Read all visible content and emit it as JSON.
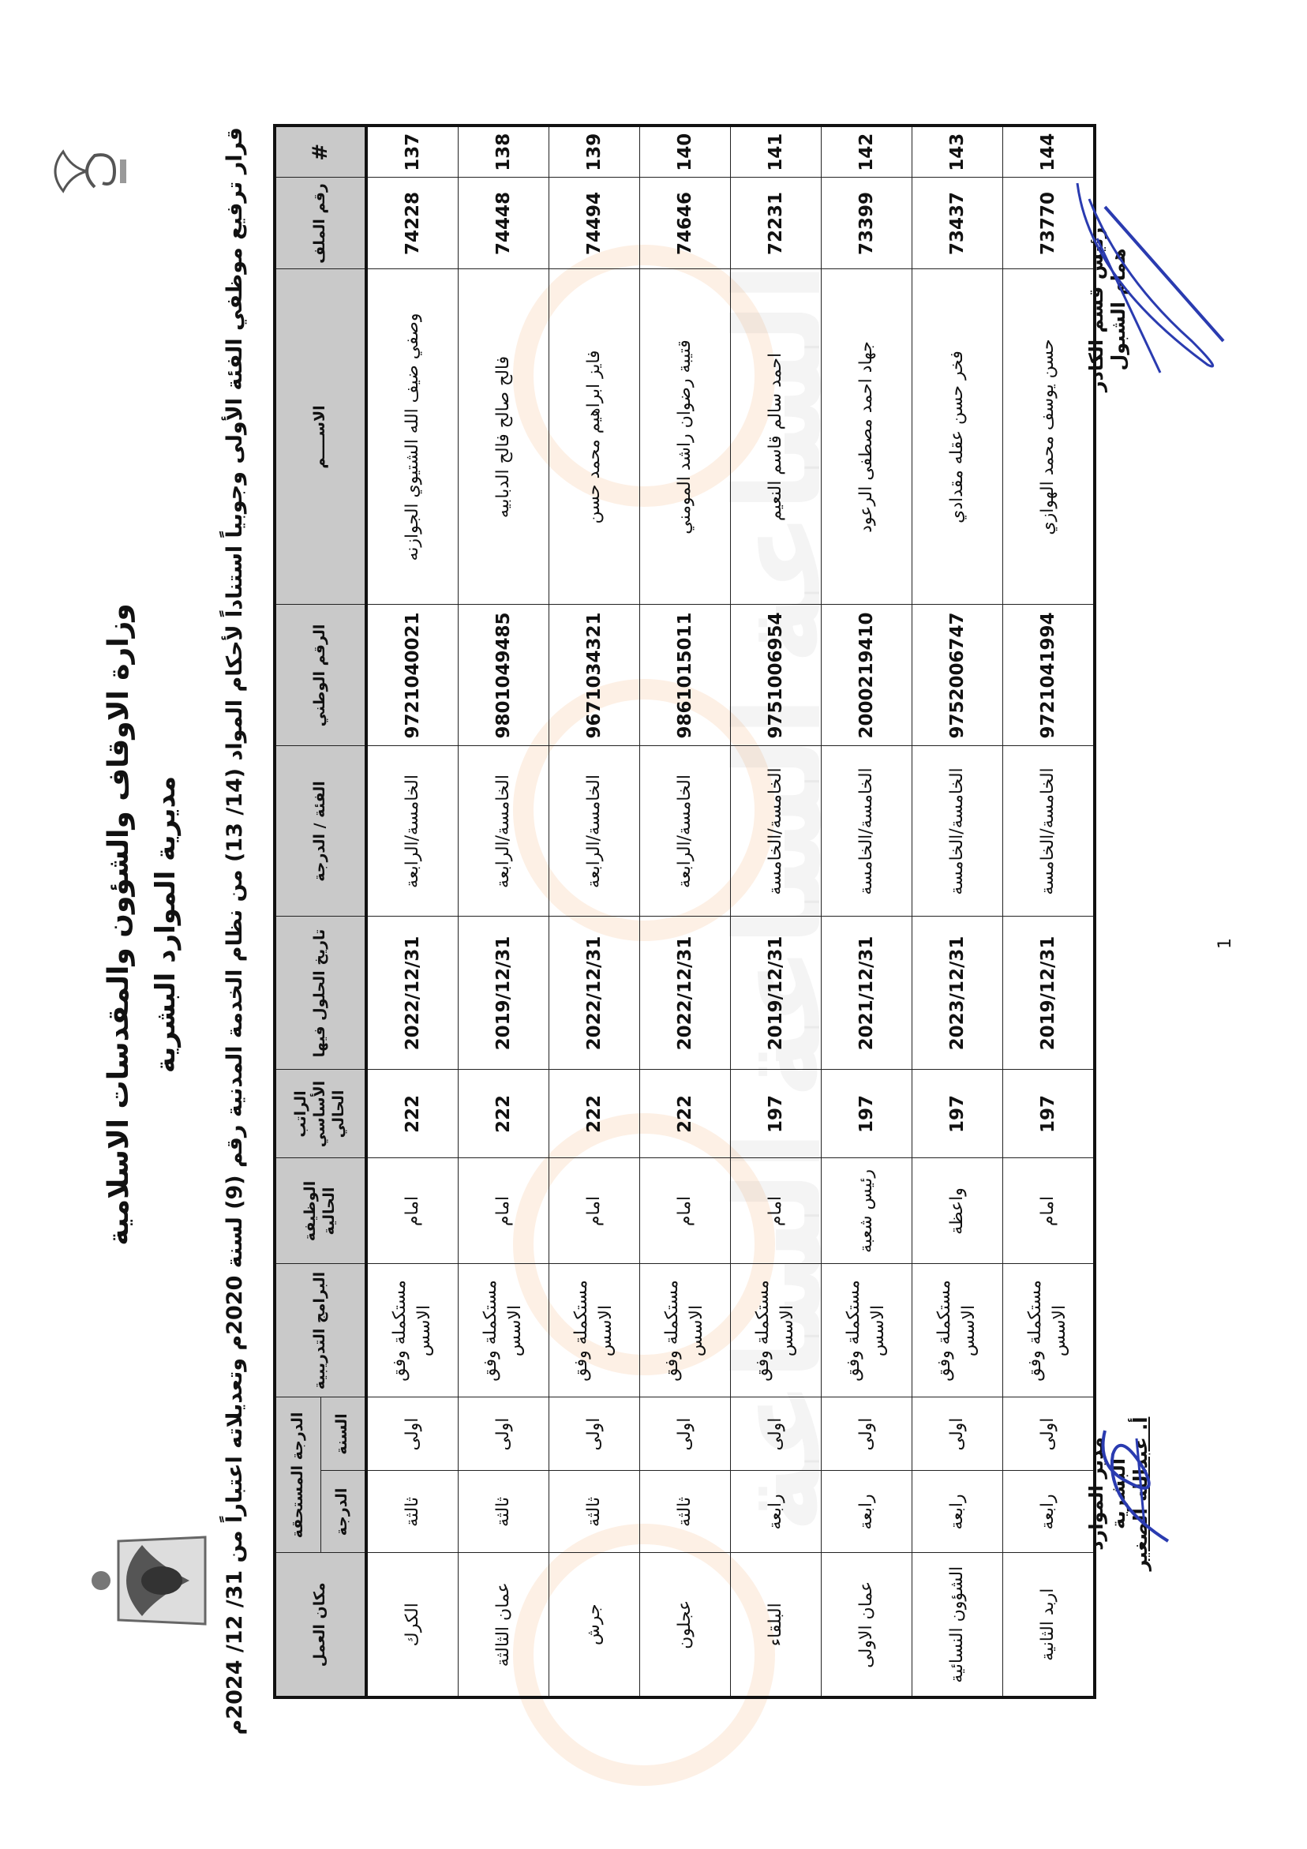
{
  "header": {
    "ministry": "وزارة الاوقاف والشؤون والمقدسات الاسلامية",
    "directorate": "مديرية الموارد البشرية",
    "decision": "قرار ترفيع موظفي الفئة الأولى وجوبياً استناداً لأحكام المواد (14/ 13) من نظام الخدمة المدنية رقم (9) لسنة 2020م وتعديلاته اعتباراً من 31/ 12/ 2024م"
  },
  "table": {
    "headers": {
      "index": "#",
      "file_no": "رقم الملف",
      "name": "الاســــم",
      "national_no": "الرقم الوطني",
      "grade": "الفئة / الدرجة",
      "date": "تاريخ الحلول فيها",
      "salary": "الراتب الأساسي الحالي",
      "job": "الوظيفة الحالية",
      "programs": "البرامج التدريبية",
      "due_grade": "الدرجة المستحقة",
      "due_year": "السنة",
      "due_degree": "الدرجة",
      "workplace": "مكان العمل"
    },
    "rows": [
      {
        "index": "137",
        "file_no": "74228",
        "name": "وصفي ضيف الله الشتيوي الجوازنه",
        "national_no": "9721040021",
        "grade": "الخامسة/الرابعة",
        "date": "2022/12/31",
        "salary": "222",
        "job": "امام",
        "programs": "مستكملة وفق الاسس",
        "year": "اولى",
        "degree": "ثالثة",
        "workplace": "الكرك"
      },
      {
        "index": "138",
        "file_no": "74448",
        "name": "فالح صالح فالح الدبابيه",
        "national_no": "9801049485",
        "grade": "الخامسة/الرابعة",
        "date": "2019/12/31",
        "salary": "222",
        "job": "امام",
        "programs": "مستكملة وفق الاسس",
        "year": "اولى",
        "degree": "ثالثة",
        "workplace": "عمان الثالثة"
      },
      {
        "index": "139",
        "file_no": "74494",
        "name": "فايز ابراهيم محمد حسن",
        "national_no": "9671034321",
        "grade": "الخامسة/الرابعة",
        "date": "2022/12/31",
        "salary": "222",
        "job": "امام",
        "programs": "مستكملة وفق الاسس",
        "year": "اولى",
        "degree": "ثالثة",
        "workplace": "جرش"
      },
      {
        "index": "140",
        "file_no": "74646",
        "name": "قتيبة رضوان راشد المومني",
        "national_no": "9861015011",
        "grade": "الخامسة/الرابعة",
        "date": "2022/12/31",
        "salary": "222",
        "job": "امام",
        "programs": "مستكملة وفق الاسس",
        "year": "اولى",
        "degree": "ثالثة",
        "workplace": "عجلون"
      },
      {
        "index": "141",
        "file_no": "72231",
        "name": "احمد سالم قاسم النعيم",
        "national_no": "9751006954",
        "grade": "الخامسة/الخامسة",
        "date": "2019/12/31",
        "salary": "197",
        "job": "امام",
        "programs": "مستكملة وفق الاسس",
        "year": "اولى",
        "degree": "رابعة",
        "workplace": "البلقاء"
      },
      {
        "index": "142",
        "file_no": "73399",
        "name": "جهاد احمد مصطفى الرعود",
        "national_no": "2000219410",
        "grade": "الخامسة/الخامسة",
        "date": "2021/12/31",
        "salary": "197",
        "job": "رئيس شعبة",
        "programs": "مستكملة وفق الاسس",
        "year": "اولى",
        "degree": "رابعة",
        "workplace": "عمان الاولى"
      },
      {
        "index": "143",
        "file_no": "73437",
        "name": "فخر حسن عقله مقدادي",
        "national_no": "9752006747",
        "grade": "الخامسة/الخامسة",
        "date": "2023/12/31",
        "salary": "197",
        "job": "واعظة",
        "programs": "مستكملة وفق الاسس",
        "year": "اولى",
        "degree": "رابعة",
        "workplace": "الشؤون النسائية"
      },
      {
        "index": "144",
        "file_no": "73770",
        "name": "حسن يوسف محمد الهوازي",
        "national_no": "9721041994",
        "grade": "الخامسة/الخامسة",
        "date": "2019/12/31",
        "salary": "197",
        "job": "امام",
        "programs": "مستكملة وفق الاسس",
        "year": "اولى",
        "degree": "رابعة",
        "workplace": "اربد الثانية"
      }
    ]
  },
  "signatures": {
    "cadre_title": "رئيس قسم الكادر",
    "cadre_name": "همام الشبول",
    "hr_title": "مدير الموارد البشرية",
    "hr_name": "أ. عبدالله الصغير",
    "ink_color": "#2a3bb0"
  },
  "page_number": "1",
  "watermark": "مدار الساعة الإخبارية"
}
